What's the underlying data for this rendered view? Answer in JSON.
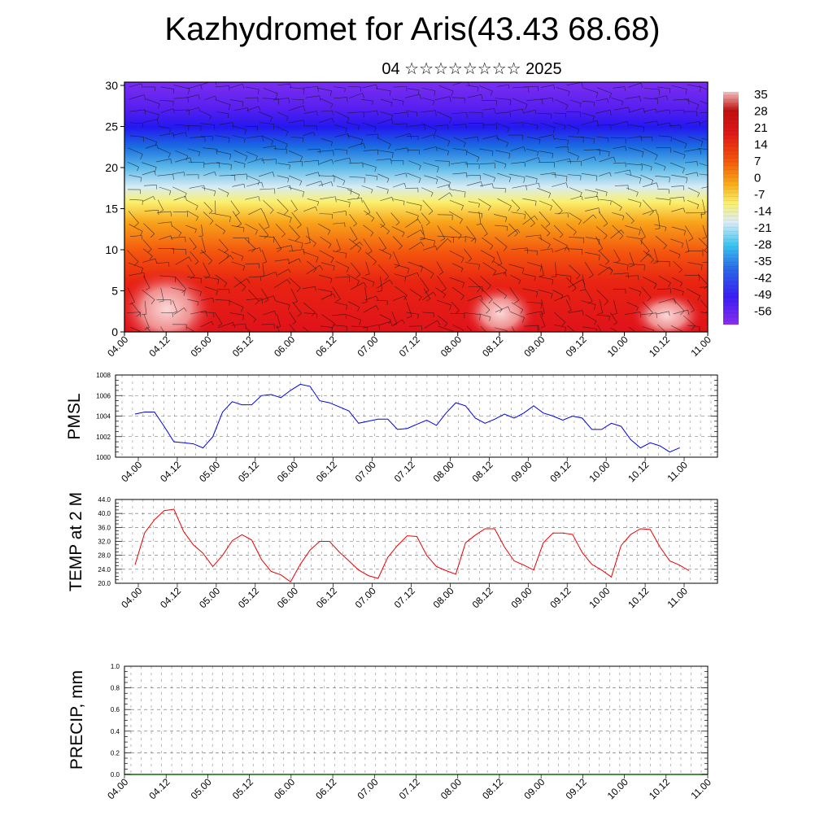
{
  "title": "Kazhydromet for Aris(43.43 68.68)",
  "subtitle": "04 ☆☆☆☆☆☆☆☆ 2025",
  "colors": {
    "pmsl_line": "#0000ee",
    "temp_line": "#ee0000",
    "precip_line": "#0a6a0a"
  },
  "time_ticks": [
    "04.00",
    "04.12",
    "05.00",
    "05.12",
    "06.00",
    "06.12",
    "07.00",
    "07.12",
    "08.00",
    "08.12",
    "09.00",
    "09.12",
    "10.00",
    "10.12",
    "11.00"
  ],
  "colorbar_labels": [
    "35",
    "28",
    "21",
    "14",
    "7",
    "0",
    "-7",
    "-14",
    "-21",
    "-28",
    "-35",
    "-42",
    "-49",
    "-56"
  ],
  "chart_data": [
    {
      "type": "heatmap",
      "title": "",
      "description_free": true,
      "x": [
        "04.00",
        "04.12",
        "05.00",
        "05.12",
        "06.00",
        "06.12",
        "07.00",
        "07.12",
        "08.00",
        "08.12",
        "09.00",
        "09.12",
        "10.00",
        "10.12",
        "11.00"
      ],
      "ylabel": "",
      "ylim": [
        0,
        30
      ],
      "yticks": [
        0,
        5,
        10,
        15,
        20,
        25,
        30
      ],
      "colorbar_range": [
        -56,
        35
      ],
      "colorbar_ticks": [
        35,
        28,
        21,
        14,
        7,
        0,
        -7,
        -14,
        -21,
        -28,
        -35,
        -42,
        -49,
        -56
      ],
      "overlay": "wind barbs"
    },
    {
      "type": "line",
      "ylabel": "PMSL",
      "ylim": [
        1000,
        1008
      ],
      "yticks": [
        "1000",
        "1002",
        "1004",
        "1006",
        "1008"
      ],
      "xrange": [
        0,
        14
      ],
      "series": [
        {
          "name": "",
          "x_ticks_units": [
            -0.18,
            0,
            0.21,
            0.42,
            0.63,
            0.84,
            1.05,
            1.26,
            1.47,
            1.68,
            1.89,
            2.1,
            2.31,
            2.52,
            2.73,
            2.94,
            3.15,
            3.36,
            3.57,
            3.78,
            3.99,
            4.2,
            4.41,
            4.62,
            4.83,
            5.04,
            5.25,
            5.46,
            5.67,
            5.88,
            6.09,
            6.3,
            6.51,
            6.72,
            6.93,
            7.14,
            7.35,
            7.56,
            7.77,
            7.98,
            8.19,
            8.4,
            8.61,
            8.82,
            9.03,
            9.24,
            9.45,
            9.66,
            9.87,
            10.08,
            10.29,
            10.5,
            10.71,
            10.92,
            11.13,
            11.34,
            11.55,
            11.76,
            11.97,
            12.18,
            12.39,
            12.6,
            12.81,
            13.02,
            13.23,
            13.44
          ],
          "values": [
            1004.2,
            1004.4,
            1004.4,
            1003.0,
            1001.5,
            1001.4,
            1001.3,
            1000.9,
            1002.0,
            1004.4,
            1005.4,
            1005.1,
            1005.1,
            1006.0,
            1006.1,
            1005.8,
            1006.5,
            1007.1,
            1006.9,
            1005.5,
            1005.3,
            1004.9,
            1004.5,
            1003.3,
            1003.5,
            1003.7,
            1003.7,
            1002.7,
            1002.8,
            1003.2,
            1003.6,
            1003.1,
            1004.3,
            1005.3,
            1005.0,
            1003.8,
            1003.3,
            1003.7,
            1004.2,
            1003.8,
            1004.3,
            1005.0,
            1004.3,
            1004.0,
            1003.6,
            1004.0,
            1003.8,
            1002.7,
            1002.7,
            1003.3,
            1003.0,
            1001.7,
            1000.9,
            1001.4,
            1001.1,
            1000.5,
            1000.9,
            null,
            null,
            null,
            null,
            null,
            null,
            null,
            null,
            null
          ]
        }
      ]
    },
    {
      "type": "line",
      "ylabel": "TEMP at 2 M",
      "ylim": [
        20,
        44
      ],
      "yticks": [
        "20.0",
        "24.0",
        "28.0",
        "32.0",
        "36.0",
        "40.0",
        "44.0"
      ],
      "series": [
        {
          "name": "",
          "values": [
            25.3,
            34.5,
            38.2,
            40.8,
            41.2,
            34.8,
            31.0,
            28.6,
            24.8,
            28.0,
            32.2,
            33.9,
            32.4,
            26.8,
            23.4,
            22.4,
            20.4,
            25.4,
            29.5,
            32.0,
            32.0,
            29.0,
            26.4,
            23.8,
            22.2,
            21.4,
            27.4,
            30.8,
            33.6,
            33.4,
            28.0,
            24.8,
            23.6,
            22.6,
            31.6,
            33.8,
            35.6,
            35.6,
            30.4,
            26.4,
            25.2,
            23.8,
            31.6,
            34.4,
            34.4,
            34.0,
            28.8,
            25.4,
            23.8,
            21.8,
            30.8,
            34.0,
            35.6,
            35.4,
            30.4,
            26.4,
            25.2,
            23.6,
            null,
            null,
            null,
            null,
            null,
            null,
            null,
            null
          ]
        }
      ]
    },
    {
      "type": "line",
      "ylabel": "PRECIP, mm",
      "ylim": [
        0,
        1.0
      ],
      "yticks": [
        "0.0",
        "0.2",
        "0.4",
        "0.6",
        "0.8",
        "1.0"
      ],
      "series": [
        {
          "name": "",
          "values": [
            0,
            0,
            0,
            0,
            0,
            0,
            0,
            0,
            0,
            0,
            0,
            0,
            0,
            0,
            0,
            0,
            0,
            0,
            0,
            0,
            0,
            0,
            0,
            0,
            0,
            0,
            0,
            0,
            0,
            0,
            0,
            0,
            0,
            0,
            0,
            0,
            0,
            0,
            0,
            0,
            0,
            0,
            0,
            0,
            0,
            0,
            0,
            0,
            0,
            0,
            0,
            0,
            0,
            0,
            0,
            0,
            0
          ]
        }
      ]
    }
  ]
}
